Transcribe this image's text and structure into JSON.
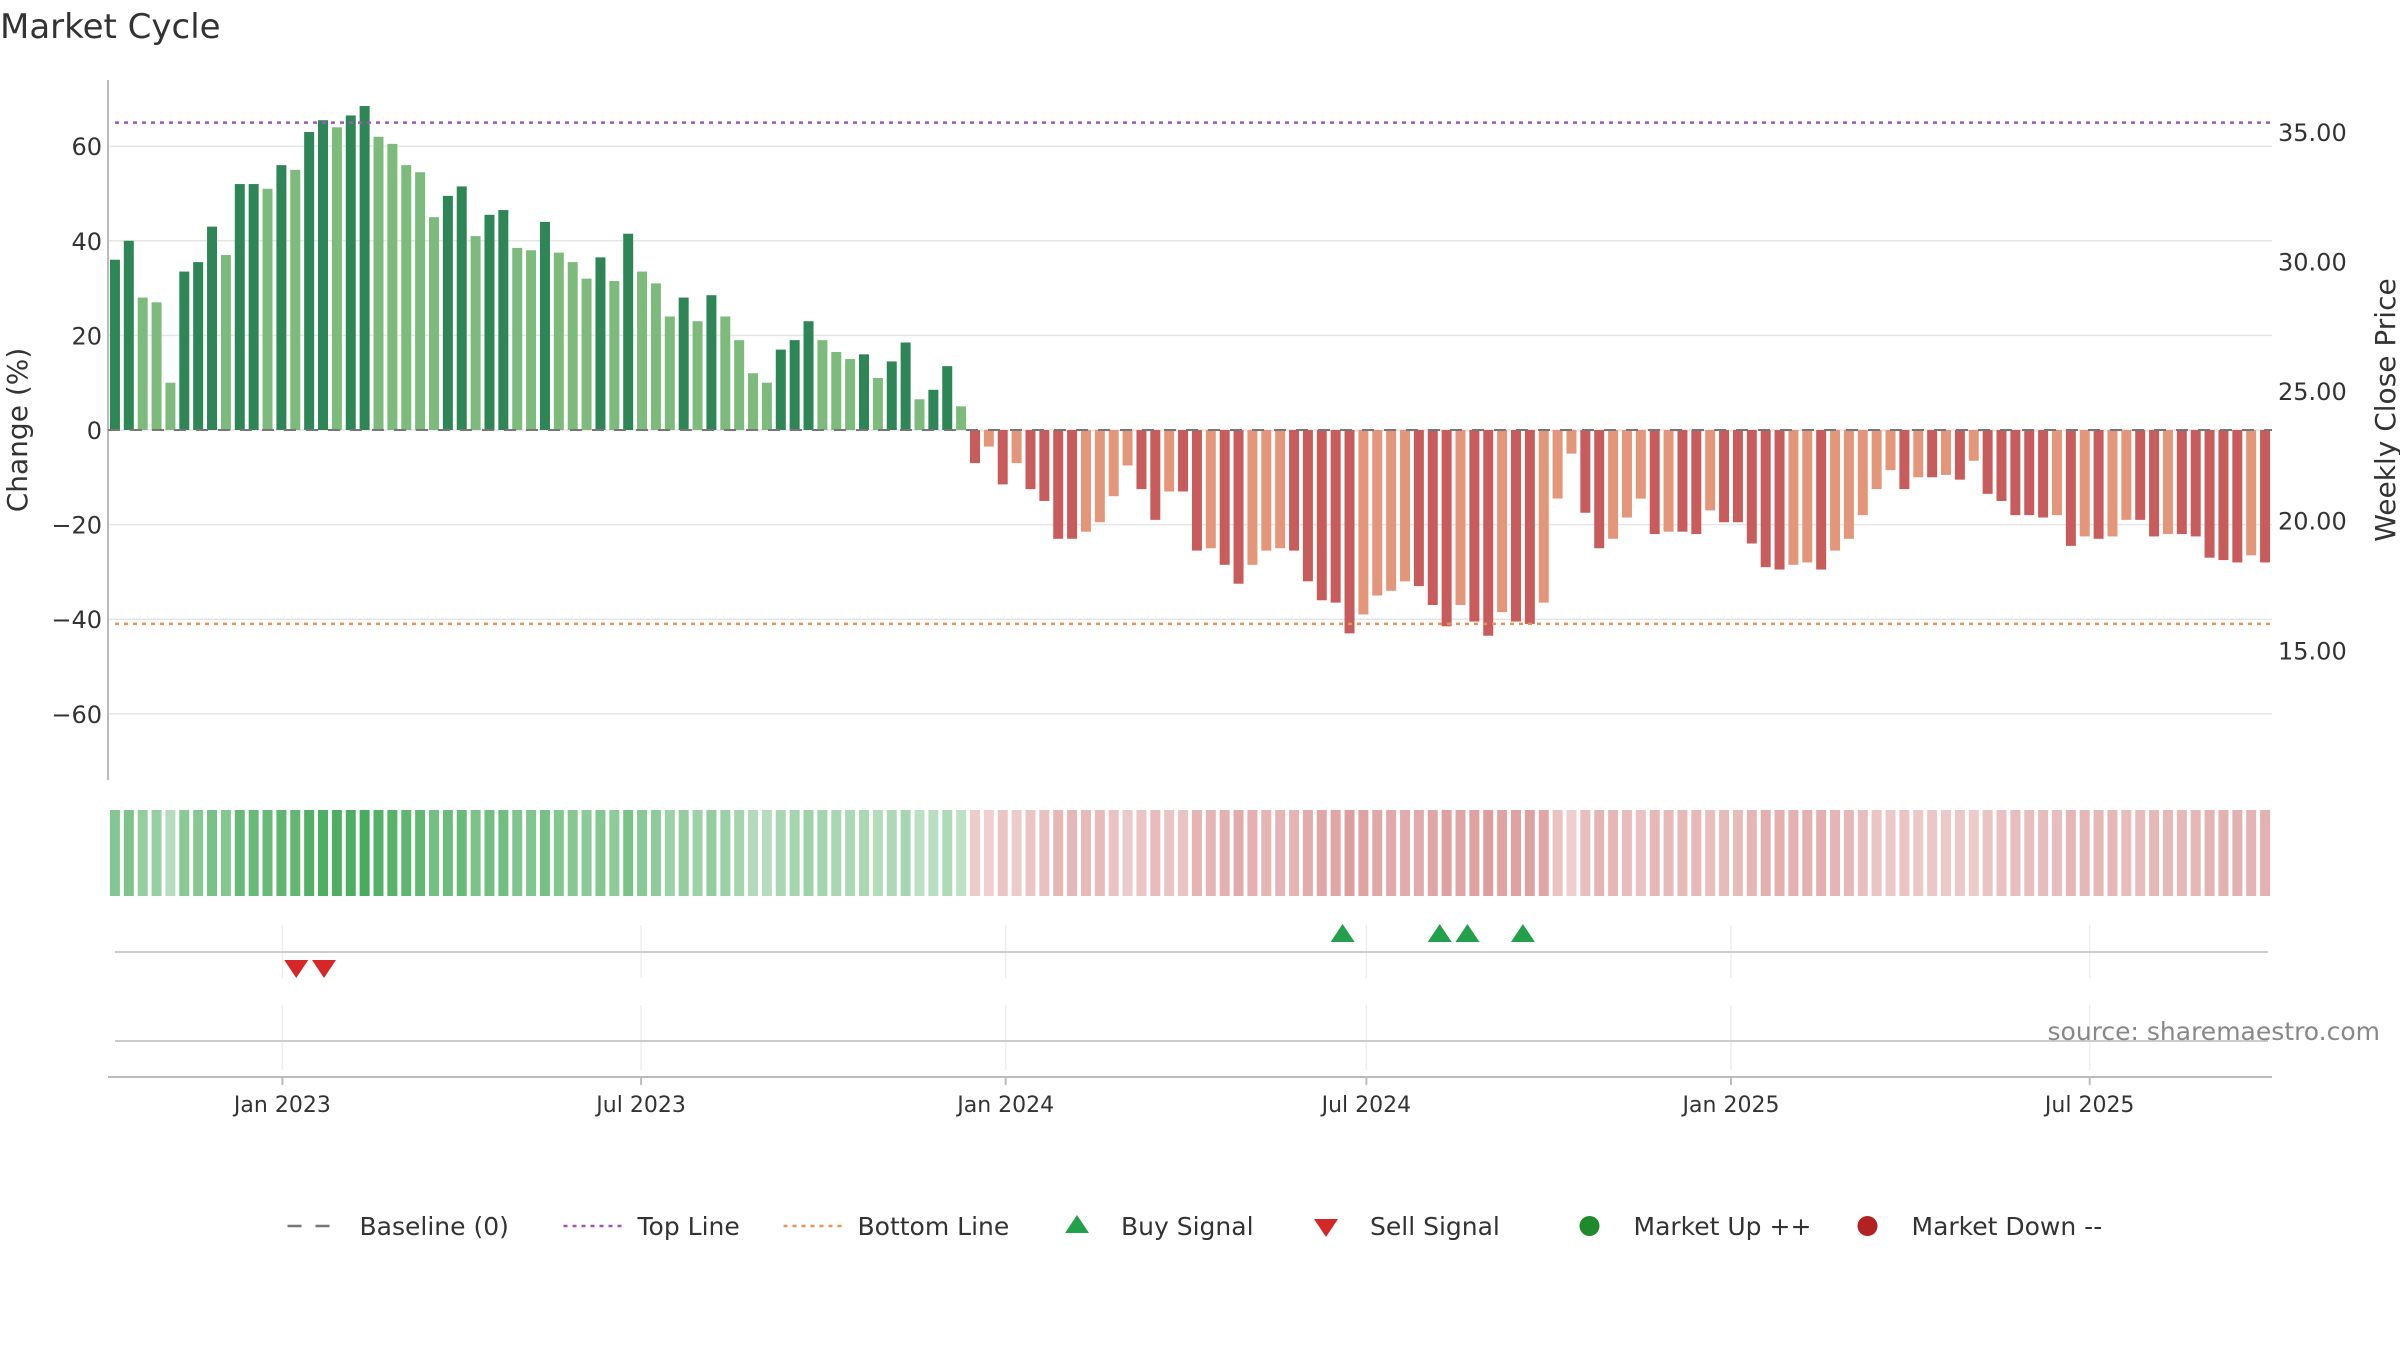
{
  "chart_data": {
    "type": "bar",
    "title": "Market Cycle",
    "ylabel": "Change (%)",
    "y2label": "Weekly Close Price",
    "ylim": [
      -74,
      74
    ],
    "y2lim": [
      10.0,
      37.0
    ],
    "yticks": [
      -60,
      -40,
      -20,
      0,
      20,
      40,
      60
    ],
    "y2ticks": [
      "15.00",
      "20.00",
      "25.00",
      "30.00",
      "35.00"
    ],
    "x_start": "2022-10-05",
    "x_end": "2025-10-01",
    "xticks": [
      {
        "date": "2023-01-01",
        "label": "Jan 2023"
      },
      {
        "date": "2023-07-01",
        "label": "Jul 2023"
      },
      {
        "date": "2024-01-01",
        "label": "Jan 2024"
      },
      {
        "date": "2024-07-01",
        "label": "Jul 2024"
      },
      {
        "date": "2025-01-01",
        "label": "Jan 2025"
      },
      {
        "date": "2025-07-01",
        "label": "Jul 2025"
      }
    ],
    "first_week": "2022-10-05",
    "top_line": 65,
    "bottom_line": -41,
    "values": [
      36,
      40,
      28,
      27,
      10,
      33.5,
      35.5,
      43,
      37,
      52,
      52,
      51,
      56,
      55,
      63,
      65.5,
      64,
      66.5,
      68.5,
      62,
      60.5,
      56,
      54.5,
      45,
      49.5,
      51.5,
      41,
      45.5,
      46.5,
      38.5,
      38,
      44,
      37.5,
      35.5,
      32,
      36.5,
      31.5,
      41.5,
      33.5,
      31,
      24,
      28,
      23,
      28.5,
      24,
      19,
      12,
      10,
      17,
      19,
      23,
      19,
      16.5,
      15,
      16,
      11,
      14.5,
      18.5,
      6.5,
      8.5,
      13.5,
      5,
      -7,
      -3.5,
      -11.5,
      -7,
      -12.5,
      -15,
      -23,
      -23,
      -21.5,
      -19.5,
      -14,
      -7.5,
      -12.5,
      -19,
      -13,
      -13,
      -25.5,
      -25,
      -28.5,
      -32.5,
      -28.5,
      -25.5,
      -25,
      -25.5,
      -32,
      -36,
      -36.5,
      -43,
      -39,
      -35,
      -34,
      -32,
      -33,
      -37,
      -41.5,
      -37,
      -40.5,
      -43.5,
      -38.5,
      -40.5,
      -41,
      -36.5,
      -14.5,
      -5,
      -17.5,
      -25,
      -23,
      -18.5,
      -14.5,
      -22,
      -21.5,
      -21.5,
      -22,
      -17,
      -19.5,
      -19.5,
      -24,
      -29,
      -29.5,
      -28.5,
      -28,
      -29.5,
      -25.5,
      -23,
      -18,
      -12.5,
      -8.5,
      -12.5,
      -10,
      -10,
      -9.5,
      -10.5,
      -6.5,
      -13.5,
      -15,
      -18,
      -18,
      -18.5,
      -18,
      -24.5,
      -22.5,
      -23,
      -22.5,
      -19,
      -19,
      -22.5,
      -22,
      -22,
      -22.5,
      -27,
      -27.5,
      -28,
      -26.5,
      -28
    ],
    "signals": {
      "buy": [
        "2024-06-19",
        "2024-08-07",
        "2024-08-21",
        "2024-09-18"
      ],
      "sell": [
        "2023-01-08",
        "2023-01-22"
      ],
      "market_up": [],
      "market_down": []
    },
    "colors": {
      "up_dark": "#2e8555",
      "up_light": "#7dbb7d",
      "down_dark": "#c85c5c",
      "down_light": "#e3967a",
      "top_line": "#9b59b6",
      "bottom_line": "#e8915a",
      "buy": "#22a04b",
      "sell": "#d62728",
      "market_up": "#1e8a2a",
      "market_down": "#b22222",
      "baseline": "#777777"
    },
    "legend_position": "bottom",
    "legend": [
      {
        "key": "baseline",
        "label": "Baseline (0)"
      },
      {
        "key": "top",
        "label": "Top Line"
      },
      {
        "key": "bottom",
        "label": "Bottom Line"
      },
      {
        "key": "buy",
        "label": "Buy Signal"
      },
      {
        "key": "sell",
        "label": "Sell Signal"
      },
      {
        "key": "up",
        "label": "Market Up ++"
      },
      {
        "key": "down",
        "label": "Market Down --"
      }
    ],
    "source": "source: sharemaestro.com",
    "grid": true
  }
}
